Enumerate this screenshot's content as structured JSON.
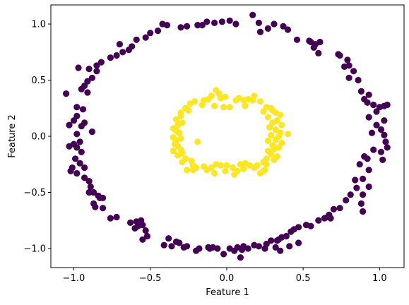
{
  "chart_data": {
    "type": "scatter",
    "title": "",
    "xlabel": "Feature 1",
    "ylabel": "Feature 2",
    "xlim": [
      -1.15,
      1.16
    ],
    "ylim": [
      -1.17,
      1.17
    ],
    "xticks": [
      -1.0,
      -0.5,
      0.0,
      0.5,
      1.0
    ],
    "xtick_labels": [
      "−1.0",
      "−0.5",
      "0.0",
      "0.5",
      "1.0"
    ],
    "yticks": [
      -1.0,
      -0.5,
      0.0,
      0.5,
      1.0
    ],
    "ytick_labels": [
      "−1.0",
      "−0.5",
      "0.0",
      "0.5",
      "1.0"
    ],
    "grid": false,
    "legend": "none",
    "series": [
      {
        "color": "#440154",
        "points": [
          [
            0.17,
            1.08
          ],
          [
            0.02,
            1.03
          ],
          [
            -0.03,
            1.02
          ],
          [
            -0.08,
            1.01
          ],
          [
            -0.13,
            1.02
          ],
          [
            -0.16,
            0.99
          ],
          [
            0.06,
            1.0
          ],
          [
            -0.19,
            0.99
          ],
          [
            0.21,
            1.01
          ],
          [
            0.31,
            1.0
          ],
          [
            -0.26,
            0.98
          ],
          [
            -0.3,
            0.97
          ],
          [
            0.37,
            0.98
          ],
          [
            0.27,
            0.96
          ],
          [
            -0.39,
            0.99
          ],
          [
            0.4,
            0.95
          ],
          [
            -0.42,
            1.0
          ],
          [
            0.22,
            0.93
          ],
          [
            -0.45,
            0.94
          ],
          [
            -0.5,
            0.92
          ],
          [
            0.46,
            0.86
          ],
          [
            0.55,
            0.84
          ],
          [
            -0.53,
            0.88
          ],
          [
            0.58,
            0.82
          ],
          [
            -0.59,
            0.86
          ],
          [
            0.54,
            0.85
          ],
          [
            -0.62,
            0.8
          ],
          [
            0.61,
            0.84
          ],
          [
            0.57,
            0.79
          ],
          [
            -0.64,
            0.77
          ],
          [
            -0.7,
            0.82
          ],
          [
            -0.68,
            0.75
          ],
          [
            0.6,
            0.74
          ],
          [
            -0.72,
            0.72
          ],
          [
            0.73,
            0.73
          ],
          [
            0.74,
            0.72
          ],
          [
            0.79,
            0.68
          ],
          [
            -0.76,
            0.7
          ],
          [
            -0.82,
            0.66
          ],
          [
            0.8,
            0.63
          ],
          [
            0.77,
            0.62
          ],
          [
            -0.85,
            0.63
          ],
          [
            -0.9,
            0.6
          ],
          [
            0.83,
            0.58
          ],
          [
            -0.97,
            0.61
          ],
          [
            -0.85,
            0.58
          ],
          [
            0.8,
            0.52
          ],
          [
            -0.88,
            0.52
          ],
          [
            -0.91,
            0.49
          ],
          [
            0.86,
            0.5
          ],
          [
            -0.93,
            0.45
          ],
          [
            -0.95,
            0.42
          ],
          [
            0.88,
            0.4
          ],
          [
            -0.91,
            0.39
          ],
          [
            0.93,
            0.37
          ],
          [
            -1.05,
            0.38
          ],
          [
            0.9,
            0.33
          ],
          [
            0.92,
            0.3
          ],
          [
            0.96,
            0.28
          ],
          [
            1.03,
            0.27
          ],
          [
            -0.98,
            0.26
          ],
          [
            1.05,
            0.28
          ],
          [
            -0.94,
            0.24
          ],
          [
            0.98,
            0.22
          ],
          [
            1.0,
            0.26
          ],
          [
            -0.98,
            0.18
          ],
          [
            0.93,
            0.17
          ],
          [
            -1.0,
            0.14
          ],
          [
            1.03,
            0.14
          ],
          [
            -0.93,
            0.12
          ],
          [
            -1.03,
            0.1
          ],
          [
            0.98,
            0.1
          ],
          [
            -0.95,
            0.09
          ],
          [
            1.01,
            0.06
          ],
          [
            -0.98,
            0.02
          ],
          [
            0.95,
            0.03
          ],
          [
            1.03,
            0.01
          ],
          [
            -0.88,
            0.04
          ],
          [
            -0.96,
            -0.05
          ],
          [
            1.04,
            -0.05
          ],
          [
            -1.0,
            -0.07
          ],
          [
            -0.98,
            -0.1
          ],
          [
            1.05,
            -0.1
          ],
          [
            -1.03,
            -0.09
          ],
          [
            0.96,
            -0.12
          ],
          [
            -0.95,
            -0.14
          ],
          [
            1.01,
            -0.14
          ],
          [
            -0.99,
            -0.2
          ],
          [
            0.9,
            -0.18
          ],
          [
            0.92,
            -0.2
          ],
          [
            -0.96,
            -0.24
          ],
          [
            1.02,
            -0.21
          ],
          [
            0.87,
            -0.25
          ],
          [
            -1.01,
            -0.28
          ],
          [
            -1.02,
            -0.31
          ],
          [
            0.93,
            -0.3
          ],
          [
            -0.93,
            -0.28
          ],
          [
            -0.98,
            -0.33
          ],
          [
            -0.93,
            -0.37
          ],
          [
            0.84,
            -0.39
          ],
          [
            0.89,
            -0.38
          ],
          [
            -0.9,
            -0.4
          ],
          [
            -0.89,
            -0.45
          ],
          [
            0.85,
            -0.46
          ],
          [
            0.93,
            -0.45
          ],
          [
            -0.9,
            -0.5
          ],
          [
            0.81,
            -0.52
          ],
          [
            -0.87,
            -0.5
          ],
          [
            0.89,
            -0.52
          ],
          [
            -0.84,
            -0.53
          ],
          [
            -0.83,
            -0.55
          ],
          [
            -0.81,
            -0.55
          ],
          [
            0.78,
            -0.57
          ],
          [
            0.88,
            -0.6
          ],
          [
            -0.87,
            -0.6
          ],
          [
            -0.86,
            -0.63
          ],
          [
            0.74,
            -0.64
          ],
          [
            0.7,
            -0.65
          ],
          [
            0.89,
            -0.67
          ],
          [
            -0.81,
            -0.64
          ],
          [
            0.67,
            -0.7
          ],
          [
            0.66,
            -0.72
          ],
          [
            -0.72,
            -0.72
          ],
          [
            0.64,
            -0.73
          ],
          [
            -0.76,
            -0.73
          ],
          [
            0.6,
            -0.75
          ],
          [
            -0.56,
            -0.75
          ],
          [
            0.68,
            -0.73
          ],
          [
            -0.59,
            -0.76
          ],
          [
            -0.63,
            -0.77
          ],
          [
            0.52,
            -0.79
          ],
          [
            -0.55,
            -0.79
          ],
          [
            0.55,
            -0.8
          ],
          [
            -0.58,
            -0.8
          ],
          [
            0.47,
            -0.81
          ],
          [
            -0.6,
            -0.82
          ],
          [
            0.44,
            -0.83
          ],
          [
            -0.53,
            -0.84
          ],
          [
            0.42,
            -0.85
          ],
          [
            0.39,
            -0.89
          ],
          [
            -0.52,
            -0.89
          ],
          [
            0.36,
            -0.9
          ],
          [
            -0.55,
            -0.92
          ],
          [
            0.34,
            -0.92
          ],
          [
            0.33,
            -0.93
          ],
          [
            -0.38,
            -0.91
          ],
          [
            0.29,
            -0.93
          ],
          [
            -0.33,
            -0.94
          ],
          [
            -0.31,
            -0.95
          ],
          [
            0.47,
            -0.95
          ],
          [
            0.26,
            -0.96
          ],
          [
            -0.41,
            -0.97
          ],
          [
            0.21,
            -0.98
          ],
          [
            -0.36,
            -0.98
          ],
          [
            0.18,
            -0.97
          ],
          [
            0.41,
            -0.98
          ],
          [
            -0.26,
            -0.98
          ],
          [
            0.11,
            -0.98
          ],
          [
            -0.28,
            -0.99
          ],
          [
            0.14,
            -1.0
          ],
          [
            -0.18,
            -1.0
          ],
          [
            0.07,
            -0.99
          ],
          [
            -0.12,
            -0.99
          ],
          [
            -0.09,
            -0.99
          ],
          [
            0.02,
            -1.0
          ],
          [
            -0.06,
            -1.0
          ],
          [
            0.1,
            -1.01
          ],
          [
            0.32,
            -0.99
          ],
          [
            -0.02,
            -1.05
          ],
          [
            0.09,
            -1.08
          ],
          [
            0.25,
            -1.0
          ],
          [
            0.35,
            -1.02
          ],
          [
            -0.2,
            -1.02
          ],
          [
            0.05,
            -1.02
          ],
          [
            -0.11,
            -1.0
          ]
        ]
      },
      {
        "color": "#fde725",
        "points": [
          [
            -0.07,
            0.41
          ],
          [
            -0.05,
            0.38
          ],
          [
            -0.1,
            0.36
          ],
          [
            -0.04,
            0.34
          ],
          [
            -0.01,
            0.35
          ],
          [
            0.06,
            0.32
          ],
          [
            0.08,
            0.34
          ],
          [
            0.11,
            0.32
          ],
          [
            0.14,
            0.33
          ],
          [
            -0.12,
            0.33
          ],
          [
            -0.15,
            0.32
          ],
          [
            0.18,
            0.36
          ],
          [
            0.17,
            0.32
          ],
          [
            -0.21,
            0.31
          ],
          [
            -0.16,
            0.28
          ],
          [
            0.22,
            0.31
          ],
          [
            -0.24,
            0.29
          ],
          [
            -0.08,
            0.27
          ],
          [
            0.12,
            0.27
          ],
          [
            0.02,
            0.26
          ],
          [
            -0.02,
            0.26
          ],
          [
            0.26,
            0.26
          ],
          [
            0.29,
            0.25
          ],
          [
            -0.27,
            0.25
          ],
          [
            -0.25,
            0.23
          ],
          [
            0.3,
            0.23
          ],
          [
            0.24,
            0.22
          ],
          [
            -0.3,
            0.21
          ],
          [
            0.32,
            0.21
          ],
          [
            -0.3,
            0.18
          ],
          [
            0.35,
            0.19
          ],
          [
            0.27,
            0.17
          ],
          [
            -0.33,
            0.15
          ],
          [
            0.33,
            0.14
          ],
          [
            0.3,
            0.12
          ],
          [
            -0.29,
            0.12
          ],
          [
            -0.32,
            0.1
          ],
          [
            0.36,
            0.1
          ],
          [
            0.28,
            0.08
          ],
          [
            -0.35,
            0.07
          ],
          [
            0.32,
            0.06
          ],
          [
            -0.33,
            0.05
          ],
          [
            -0.31,
            0.03
          ],
          [
            0.35,
            0.03
          ],
          [
            0.29,
            0.01
          ],
          [
            0.4,
            0.02
          ],
          [
            0.34,
            0.0
          ],
          [
            -0.35,
            -0.01
          ],
          [
            -0.3,
            -0.02
          ],
          [
            0.32,
            -0.03
          ],
          [
            0.27,
            -0.04
          ],
          [
            -0.33,
            -0.04
          ],
          [
            0.36,
            -0.06
          ],
          [
            -0.19,
            -0.05
          ],
          [
            -0.34,
            -0.07
          ],
          [
            0.3,
            -0.08
          ],
          [
            0.34,
            -0.1
          ],
          [
            -0.32,
            -0.09
          ],
          [
            0.31,
            -0.11
          ],
          [
            -0.3,
            -0.12
          ],
          [
            0.27,
            -0.13
          ],
          [
            -0.35,
            -0.13
          ],
          [
            -0.29,
            -0.15
          ],
          [
            0.29,
            -0.16
          ],
          [
            -0.32,
            -0.17
          ],
          [
            0.33,
            -0.18
          ],
          [
            0.26,
            -0.2
          ],
          [
            -0.27,
            -0.2
          ],
          [
            0.31,
            -0.21
          ],
          [
            -0.23,
            -0.22
          ],
          [
            0.24,
            -0.23
          ],
          [
            -0.29,
            -0.23
          ],
          [
            0.26,
            -0.25
          ],
          [
            0.12,
            -0.24
          ],
          [
            -0.22,
            -0.26
          ],
          [
            0.2,
            -0.26
          ],
          [
            0.15,
            -0.26
          ],
          [
            0.09,
            -0.25
          ],
          [
            -0.07,
            -0.25
          ],
          [
            -0.04,
            -0.26
          ],
          [
            0.0,
            -0.26
          ],
          [
            -0.15,
            -0.27
          ],
          [
            -0.1,
            -0.28
          ],
          [
            0.04,
            -0.28
          ],
          [
            0.11,
            -0.29
          ],
          [
            0.18,
            -0.28
          ],
          [
            -0.2,
            -0.28
          ],
          [
            -0.13,
            -0.3
          ],
          [
            -0.26,
            -0.3
          ],
          [
            -0.22,
            -0.3
          ],
          [
            0.25,
            -0.3
          ],
          [
            -0.01,
            -0.31
          ],
          [
            0.07,
            -0.31
          ],
          [
            -0.08,
            -0.33
          ],
          [
            0.05,
            -0.34
          ],
          [
            0.22,
            -0.33
          ],
          [
            0.24,
            -0.31
          ]
        ]
      }
    ]
  }
}
